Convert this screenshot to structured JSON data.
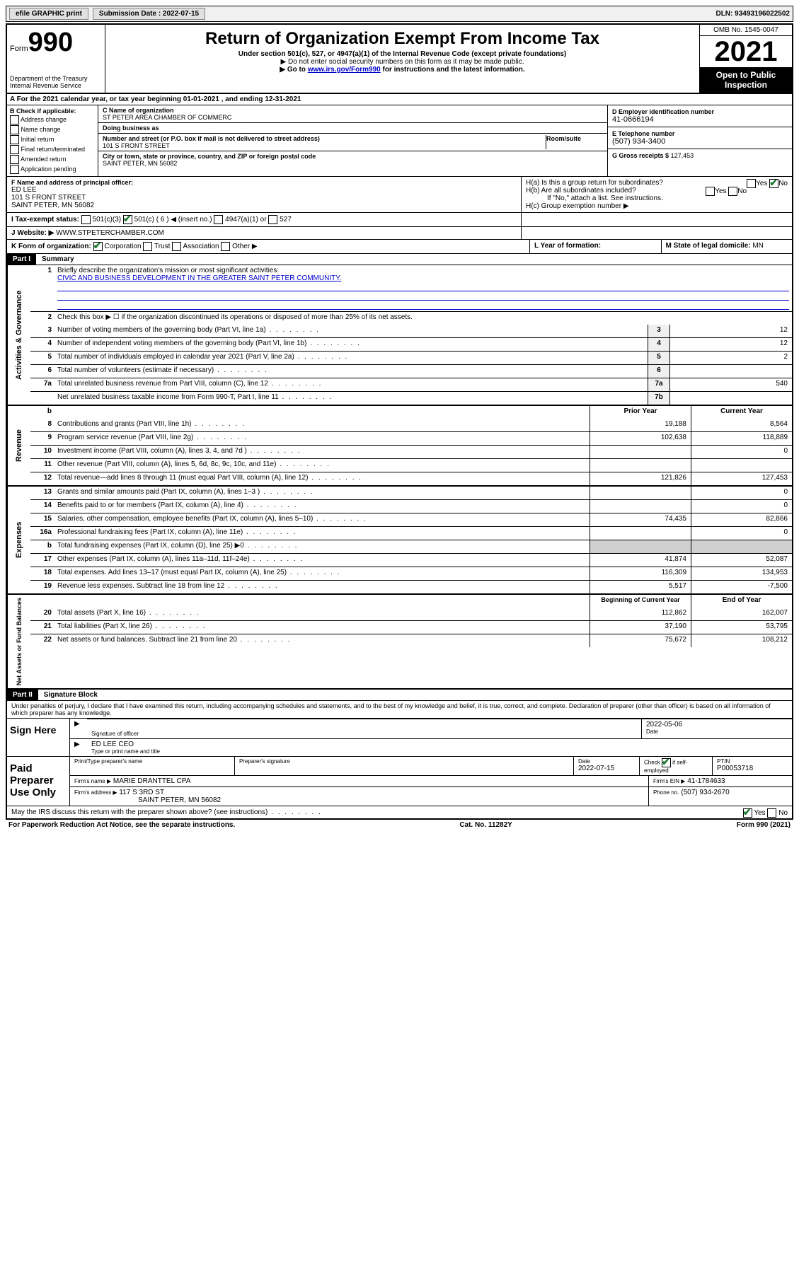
{
  "topbar": {
    "efile": "efile GRAPHIC print",
    "submission_label": "Submission Date : 2022-07-15",
    "dln": "DLN: 93493196022502"
  },
  "header": {
    "form_prefix": "Form",
    "form_number": "990",
    "dept": "Department of the Treasury",
    "irs": "Internal Revenue Service",
    "title": "Return of Organization Exempt From Income Tax",
    "subtitle": "Under section 501(c), 527, or 4947(a)(1) of the Internal Revenue Code (except private foundations)",
    "note1": "▶ Do not enter social security numbers on this form as it may be made public.",
    "note2_pre": "▶ Go to ",
    "note2_link": "www.irs.gov/Form990",
    "note2_post": " for instructions and the latest information.",
    "omb": "OMB No. 1545-0047",
    "year": "2021",
    "open": "Open to Public Inspection"
  },
  "row_a": "A For the 2021 calendar year, or tax year beginning 01-01-2021   , and ending 12-31-2021",
  "col_b": {
    "header": "B Check if applicable:",
    "items": [
      "Address change",
      "Name change",
      "Initial return",
      "Final return/terminated",
      "Amended return",
      "Application pending"
    ]
  },
  "col_c": {
    "name_label": "C Name of organization",
    "name": "ST PETER AREA CHAMBER OF COMMERC",
    "dba_label": "Doing business as",
    "dba": "",
    "addr_label": "Number and street (or P.O. box if mail is not delivered to street address)",
    "room_label": "Room/suite",
    "addr": "101 S FRONT STREET",
    "city_label": "City or town, state or province, country, and ZIP or foreign postal code",
    "city": "SAINT PETER, MN  56082"
  },
  "col_d": {
    "ein_label": "D Employer identification number",
    "ein": "41-0666194",
    "phone_label": "E Telephone number",
    "phone": "(507) 934-3400",
    "gross_label": "G Gross receipts $",
    "gross": "127,453"
  },
  "row_f": {
    "label": "F Name and address of principal officer:",
    "name": "ED LEE",
    "addr1": "101 S FRONT STREET",
    "addr2": "SAINT PETER, MN  56082"
  },
  "row_h": {
    "ha": "H(a)  Is this a group return for subordinates?",
    "hb": "H(b)  Are all subordinates included?",
    "hb_note": "If \"No,\" attach a list. See instructions.",
    "hc": "H(c)  Group exemption number ▶"
  },
  "row_i": {
    "label": "I   Tax-exempt status:",
    "opt1": "501(c)(3)",
    "opt2": "501(c) ( 6 ) ◀ (insert no.)",
    "opt3": "4947(a)(1) or",
    "opt4": "527"
  },
  "row_j": {
    "label": "J   Website: ▶",
    "value": "WWW.STPETERCHAMBER.COM"
  },
  "row_k": {
    "label": "K Form of organization:",
    "opts": [
      "Corporation",
      "Trust",
      "Association",
      "Other ▶"
    ]
  },
  "row_l": {
    "label": "L Year of formation:",
    "value": ""
  },
  "row_m": {
    "label": "M State of legal domicile:",
    "value": "MN"
  },
  "part1": {
    "header": "Part I",
    "title": "Summary",
    "q1": "Briefly describe the organization's mission or most significant activities:",
    "mission": "CIVIC AND BUSINESS DEVELOPMENT IN THE GREATER SAINT PETER COMMUNITY.",
    "q2": "Check this box ▶ ☐  if the organization discontinued its operations or disposed of more than 25% of its net assets.",
    "rows_governance": [
      {
        "n": "3",
        "d": "Number of voting members of the governing body (Part VI, line 1a)",
        "box": "3",
        "v": "12"
      },
      {
        "n": "4",
        "d": "Number of independent voting members of the governing body (Part VI, line 1b)",
        "box": "4",
        "v": "12"
      },
      {
        "n": "5",
        "d": "Total number of individuals employed in calendar year 2021 (Part V, line 2a)",
        "box": "5",
        "v": "2"
      },
      {
        "n": "6",
        "d": "Total number of volunteers (estimate if necessary)",
        "box": "6",
        "v": ""
      },
      {
        "n": "7a",
        "d": "Total unrelated business revenue from Part VIII, column (C), line 12",
        "box": "7a",
        "v": "540"
      },
      {
        "n": "",
        "d": "Net unrelated business taxable income from Form 990-T, Part I, line 11",
        "box": "7b",
        "v": ""
      }
    ],
    "col_headers": {
      "prior": "Prior Year",
      "curr": "Current Year"
    },
    "rows_revenue": [
      {
        "n": "8",
        "d": "Contributions and grants (Part VIII, line 1h)",
        "p": "19,188",
        "c": "8,564"
      },
      {
        "n": "9",
        "d": "Program service revenue (Part VIII, line 2g)",
        "p": "102,638",
        "c": "118,889"
      },
      {
        "n": "10",
        "d": "Investment income (Part VIII, column (A), lines 3, 4, and 7d )",
        "p": "",
        "c": "0"
      },
      {
        "n": "11",
        "d": "Other revenue (Part VIII, column (A), lines 5, 6d, 8c, 9c, 10c, and 11e)",
        "p": "",
        "c": ""
      },
      {
        "n": "12",
        "d": "Total revenue—add lines 8 through 11 (must equal Part VIII, column (A), line 12)",
        "p": "121,826",
        "c": "127,453"
      }
    ],
    "rows_expenses": [
      {
        "n": "13",
        "d": "Grants and similar amounts paid (Part IX, column (A), lines 1–3 )",
        "p": "",
        "c": "0"
      },
      {
        "n": "14",
        "d": "Benefits paid to or for members (Part IX, column (A), line 4)",
        "p": "",
        "c": "0"
      },
      {
        "n": "15",
        "d": "Salaries, other compensation, employee benefits (Part IX, column (A), lines 5–10)",
        "p": "74,435",
        "c": "82,866"
      },
      {
        "n": "16a",
        "d": "Professional fundraising fees (Part IX, column (A), line 11e)",
        "p": "",
        "c": "0"
      },
      {
        "n": "b",
        "d": "Total fundraising expenses (Part IX, column (D), line 25) ▶0",
        "p": "shaded",
        "c": "shaded"
      },
      {
        "n": "17",
        "d": "Other expenses (Part IX, column (A), lines 11a–11d, 11f–24e)",
        "p": "41,874",
        "c": "52,087"
      },
      {
        "n": "18",
        "d": "Total expenses. Add lines 13–17 (must equal Part IX, column (A), line 25)",
        "p": "116,309",
        "c": "134,953"
      },
      {
        "n": "19",
        "d": "Revenue less expenses. Subtract line 18 from line 12",
        "p": "5,517",
        "c": "-7,500"
      }
    ],
    "col_headers2": {
      "prior": "Beginning of Current Year",
      "curr": "End of Year"
    },
    "rows_assets": [
      {
        "n": "20",
        "d": "Total assets (Part X, line 16)",
        "p": "112,862",
        "c": "162,007"
      },
      {
        "n": "21",
        "d": "Total liabilities (Part X, line 26)",
        "p": "37,190",
        "c": "53,795"
      },
      {
        "n": "22",
        "d": "Net assets or fund balances. Subtract line 21 from line 20",
        "p": "75,672",
        "c": "108,212"
      }
    ],
    "side_labels": {
      "gov": "Activities & Governance",
      "rev": "Revenue",
      "exp": "Expenses",
      "net": "Net Assets or Fund Balances"
    }
  },
  "part2": {
    "header": "Part II",
    "title": "Signature Block",
    "decl": "Under penalties of perjury, I declare that I have examined this return, including accompanying schedules and statements, and to the best of my knowledge and belief, it is true, correct, and complete. Declaration of preparer (other than officer) is based on all information of which preparer has any knowledge.",
    "sign_here": "Sign Here",
    "sig_officer": "Signature of officer",
    "sig_date": "2022-05-06",
    "date_lbl": "Date",
    "name_title": "ED LEE CEO",
    "name_title_lbl": "Type or print name and title",
    "paid": "Paid Preparer Use Only",
    "ptp_name_lbl": "Print/Type preparer's name",
    "ptp_sig_lbl": "Preparer's signature",
    "ptp_date_lbl": "Date",
    "ptp_date": "2022-07-15",
    "ptp_self": "Check ☑ if self-employed",
    "ptin_lbl": "PTIN",
    "ptin": "P00053718",
    "firm_name_lbl": "Firm's name    ▶",
    "firm_name": "MARIE DRANTTEL CPA",
    "firm_ein_lbl": "Firm's EIN ▶",
    "firm_ein": "41-1784633",
    "firm_addr_lbl": "Firm's address ▶",
    "firm_addr1": "117 S 3RD ST",
    "firm_addr2": "SAINT PETER, MN  56082",
    "firm_phone_lbl": "Phone no.",
    "firm_phone": "(507) 934-2670",
    "may_irs": "May the IRS discuss this return with the preparer shown above? (see instructions)"
  },
  "footer": {
    "pra": "For Paperwork Reduction Act Notice, see the separate instructions.",
    "cat": "Cat. No. 11282Y",
    "form": "Form 990 (2021)"
  }
}
